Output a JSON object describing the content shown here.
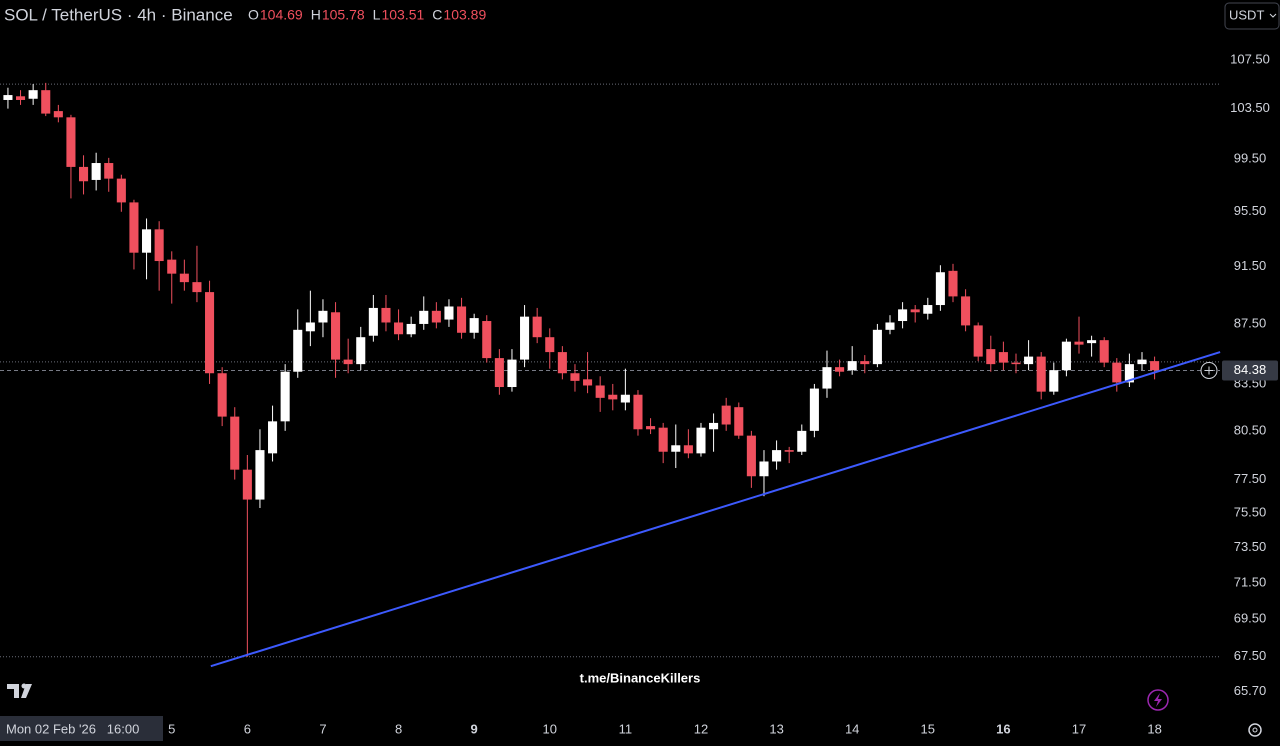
{
  "header": {
    "title": "SOL / TetherUS · 4h · Binance",
    "ohlc": [
      {
        "key": "O",
        "value": 104.69
      },
      {
        "key": "H",
        "value": 105.78
      },
      {
        "key": "L",
        "value": 103.51
      },
      {
        "key": "C",
        "value": 103.89
      }
    ]
  },
  "currency": "USDT",
  "crosshair_label": "Mon 02 Feb '26   16:00",
  "watermark": "t.me/BinanceKillers",
  "chart_data": {
    "type": "candlestick",
    "log_scale": true,
    "up_color": "#ffffff",
    "down_color": "#f0505e",
    "open": [
      104.2,
      104.5,
      104.3,
      105,
      103.3,
      102.8,
      98.9,
      97.9,
      99.2,
      98,
      96.2,
      92.5,
      94.2,
      92,
      91,
      90.4,
      89.7,
      84.2,
      81.4,
      78.1,
      76.3,
      79.1,
      81.1,
      84.3,
      87,
      87.6,
      88.3,
      85.1,
      84.8,
      86.7,
      88.6,
      87.6,
      86.8,
      87.5,
      88.4,
      87.8,
      88.7,
      86.9,
      87.7,
      85.2,
      83.3,
      85.1,
      88,
      86.6,
      85.6,
      84.2,
      83.8,
      83.4,
      82.8,
      82.3,
      82.8,
      80.8,
      80.7,
      79.2,
      79.6,
      79.1,
      80.6,
      82.1,
      82,
      80.2,
      77.7,
      78.6,
      79.3,
      79.2,
      80.5,
      83.2,
      84.6,
      84.4,
      85,
      84.8,
      87.1,
      87.7,
      88.5,
      88.2,
      88.8,
      91.2,
      89.4,
      87.4,
      85.8,
      85.6,
      84.9,
      84.8,
      85.3,
      83,
      84.4,
      86.3,
      86.2,
      86.4,
      84.9,
      83.6,
      84.8,
      85
    ],
    "high": [
      105.2,
      105,
      105.5,
      105.6,
      103.8,
      103,
      99.8,
      100,
      99.6,
      98.3,
      96.4,
      95,
      94.8,
      92.6,
      92,
      93,
      90.5,
      84.6,
      82,
      79,
      80.6,
      82.1,
      84.8,
      88.5,
      89.8,
      89.2,
      89,
      86.5,
      87.3,
      89.5,
      89.5,
      88.5,
      88,
      89.4,
      89,
      89.2,
      89.3,
      88.2,
      88.1,
      85.8,
      85.8,
      88.8,
      88.6,
      87.2,
      86,
      84.8,
      85.6,
      84,
      83.5,
      84.5,
      83.1,
      81.3,
      81,
      80.9,
      80.6,
      81,
      81.6,
      82.6,
      82.3,
      80.5,
      79.3,
      79.9,
      79.5,
      80.9,
      83.5,
      85.7,
      85.1,
      86,
      85.4,
      87.5,
      88.1,
      89,
      88.8,
      89.3,
      91.6,
      91.7,
      89.9,
      87.6,
      86.7,
      86.3,
      85.5,
      86.4,
      85.6,
      84.9,
      86.5,
      88,
      86.7,
      86.6,
      85.2,
      85.5,
      85.6,
      85.3
    ],
    "low": [
      103.5,
      103.8,
      103.8,
      102.9,
      102.4,
      96.5,
      96.8,
      97.1,
      97,
      95.5,
      91.3,
      90.6,
      89.8,
      88.9,
      89.8,
      89,
      83.5,
      80.8,
      77.5,
      67.5,
      75.8,
      78.6,
      80.5,
      83.9,
      86,
      86.6,
      83.9,
      84.2,
      84.4,
      86.3,
      87,
      86.4,
      86.6,
      87.1,
      87.2,
      87.3,
      86.5,
      86.5,
      84.9,
      82.8,
      83,
      84.6,
      86.2,
      84.5,
      83.8,
      83,
      82.9,
      81.7,
      81.8,
      81.8,
      80.2,
      80.3,
      78.5,
      78.2,
      78.8,
      78.9,
      79.2,
      80.5,
      80,
      77,
      76.5,
      78.1,
      78.5,
      79,
      80.1,
      82.6,
      84,
      84.1,
      84.2,
      84.6,
      86.8,
      87.2,
      87.6,
      87.8,
      88.4,
      89,
      87,
      85,
      84.3,
      84.4,
      84.2,
      84.4,
      82.5,
      82.8,
      84,
      85.5,
      85.3,
      84.6,
      83,
      83.3,
      84.4,
      83.8
    ],
    "close": [
      104.6,
      104.2,
      105,
      103.1,
      102.8,
      98.9,
      97.8,
      99.2,
      98,
      96.2,
      92.5,
      94.2,
      91.9,
      91,
      90.4,
      89.7,
      84.2,
      81.4,
      78.1,
      76.3,
      79.3,
      81.1,
      84.3,
      87.1,
      87.6,
      88.4,
      85.1,
      84.8,
      86.6,
      88.6,
      87.6,
      86.8,
      87.5,
      88.4,
      87.6,
      88.7,
      86.9,
      87.9,
      85.2,
      83.3,
      85.1,
      88,
      86.6,
      85.6,
      84.2,
      83.7,
      83.4,
      82.6,
      82.5,
      82.8,
      80.6,
      80.6,
      79.2,
      79.6,
      79.1,
      80.7,
      81,
      80.9,
      80.2,
      77.7,
      78.6,
      79.3,
      79.2,
      80.5,
      83.2,
      84.6,
      84.3,
      85,
      84.8,
      87.1,
      87.6,
      88.5,
      88.3,
      88.8,
      91.1,
      89.4,
      87.4,
      85.3,
      84.8,
      84.9,
      84.8,
      85.3,
      83,
      84.4,
      86.3,
      86.1,
      86.4,
      84.9,
      83.6,
      84.8,
      85.1,
      84.4
    ],
    "xlim": [
      -0.63,
      96.19
    ],
    "ylim": [
      64.6,
      112.65
    ],
    "xticks": [
      {
        "value": 13,
        "label": "5"
      },
      {
        "value": 19,
        "label": "6"
      },
      {
        "value": 25,
        "label": "7"
      },
      {
        "value": 31,
        "label": "8"
      },
      {
        "value": 37,
        "label": "9",
        "bold": true
      },
      {
        "value": 43,
        "label": "10"
      },
      {
        "value": 49,
        "label": "11"
      },
      {
        "value": 55,
        "label": "12"
      },
      {
        "value": 61,
        "label": "13"
      },
      {
        "value": 67,
        "label": "14"
      },
      {
        "value": 73,
        "label": "15"
      },
      {
        "value": 79,
        "label": "16",
        "bold": true
      },
      {
        "value": 85,
        "label": "17"
      },
      {
        "value": 91,
        "label": "18"
      }
    ],
    "yticks": [
      {
        "value": 107.5,
        "label": "107.50"
      },
      {
        "value": 103.5,
        "label": "103.50"
      },
      {
        "value": 99.5,
        "label": "99.50"
      },
      {
        "value": 95.5,
        "label": "95.50"
      },
      {
        "value": 91.5,
        "label": "91.50"
      },
      {
        "value": 87.5,
        "label": "87.50"
      },
      {
        "value": 83.5,
        "label": "83.50"
      },
      {
        "value": 80.5,
        "label": "80.50"
      },
      {
        "value": 77.5,
        "label": "77.50"
      },
      {
        "value": 75.5,
        "label": "75.50"
      },
      {
        "value": 73.5,
        "label": "73.50"
      },
      {
        "value": 71.5,
        "label": "71.50"
      },
      {
        "value": 69.5,
        "label": "69.50"
      },
      {
        "value": 67.5,
        "label": "67.50"
      },
      {
        "value": 65.7,
        "label": "65.70"
      }
    ],
    "last_price": 84.38,
    "dotted_levels": [
      105.5,
      84.95,
      67.5
    ],
    "trendline": {
      "x": [
        16.1,
        96.2
      ],
      "y": [
        67,
        85.6
      ],
      "color": "#3d5afe"
    }
  }
}
